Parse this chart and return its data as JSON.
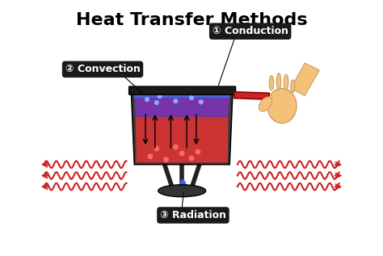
{
  "title": "Heat Transfer Methods",
  "title_fontsize": 16,
  "title_fontweight": "bold",
  "background_color": "#ffffff",
  "label1": "① Conduction",
  "label2": "② Convection",
  "label3": "③ Radiation",
  "label_bg": "#1a1a1a",
  "label_text_color": "#ffffff",
  "pot_body_color": "#3d3d3d",
  "water_top_color": "#4466dd",
  "water_mid_color": "#7733aa",
  "water_bottom_color": "#cc3333",
  "handle_color": "#cc2222",
  "wave_color": "#cc2222",
  "skin_color": "#f5c07a",
  "skin_edge_color": "#c8a060",
  "stove_color": "#222222",
  "bubble_red": "#ff6666",
  "bubble_blue": "#88aaff",
  "flame_blue": "#3366ff",
  "flame_orange": "#ff8800",
  "burner_color": "#333333",
  "rim_color": "#1a1a1a",
  "arrow_color": "black"
}
